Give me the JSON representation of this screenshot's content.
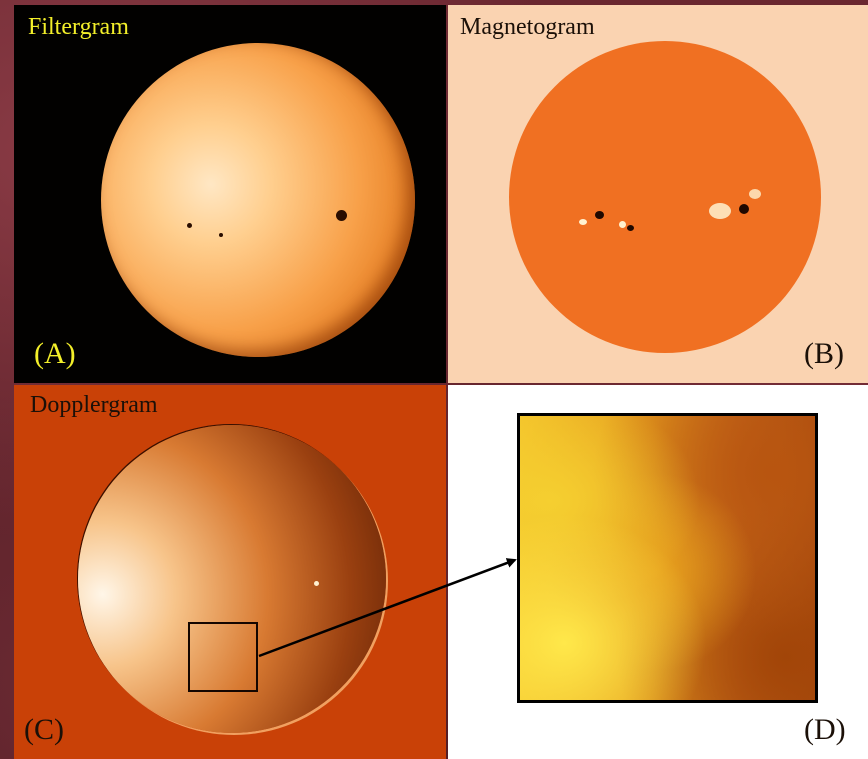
{
  "panels": {
    "a": {
      "title": "Filtergram",
      "letter": "(A)"
    },
    "b": {
      "title": "Magnetogram",
      "letter": "(B)"
    },
    "c": {
      "title": "Dopplergram",
      "letter": "(C)"
    },
    "d": {
      "letter": "(D)"
    }
  },
  "colors": {
    "label_yellow": "#f3ef2a",
    "label_dark": "#1b1008"
  }
}
